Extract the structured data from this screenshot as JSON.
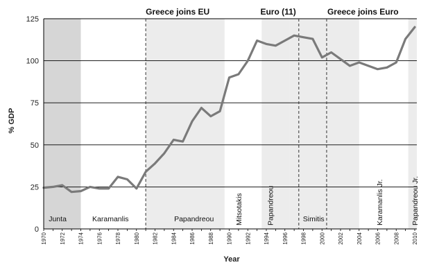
{
  "chart_data": {
    "type": "line",
    "title": "",
    "xlabel": "Year",
    "ylabel": "% GDP",
    "xlim": [
      1970,
      2010
    ],
    "ylim": [
      0,
      125
    ],
    "y_ticks": [
      0,
      25,
      50,
      75,
      100,
      125
    ],
    "x_ticks": [
      "1970",
      "1972",
      "1974",
      "1976",
      "1978",
      "1980",
      "1982",
      "1984",
      "1986",
      "1988",
      "1990",
      "1992",
      "1994",
      "1996",
      "1998",
      "2000",
      "2002",
      "2004",
      "2006",
      "2008",
      "2010"
    ],
    "grid": "horizontal",
    "colors": {
      "line": "#7a7a7a",
      "shade_dark": "#d6d6d6",
      "shade_light": "#ececec",
      "gridline": "#000000"
    },
    "series": [
      {
        "x": [
          1970,
          1971,
          1972,
          1973,
          1974,
          1975,
          1976,
          1977,
          1978,
          1979,
          1980,
          1981,
          1982,
          1983,
          1984,
          1985,
          1986,
          1987,
          1988,
          1989,
          1990,
          1991,
          1992,
          1993,
          1994,
          1995,
          1996,
          1997,
          1998,
          1999,
          2000,
          2001,
          2002,
          2003,
          2004,
          2005,
          2006,
          2007,
          2008,
          2009,
          2010
        ],
        "values": [
          24.5,
          25,
          26,
          22,
          22.5,
          25,
          24,
          24,
          31,
          29.5,
          24,
          34,
          39,
          45,
          53,
          52,
          64,
          72,
          67,
          70,
          90,
          92,
          100,
          112,
          110,
          109,
          112,
          115,
          114,
          113,
          102,
          105,
          101,
          97,
          99,
          97,
          95,
          96,
          99,
          113,
          120
        ]
      }
    ],
    "shaded_periods": [
      {
        "from": 1970,
        "to": 1974,
        "shade": "dark"
      },
      {
        "from": 1974,
        "to": 1981,
        "shade": "none"
      },
      {
        "from": 1981,
        "to": 1989.5,
        "shade": "light"
      },
      {
        "from": 1989.5,
        "to": 1993.5,
        "shade": "none"
      },
      {
        "from": 1993.5,
        "to": 1996.5,
        "shade": "light"
      },
      {
        "from": 1996.5,
        "to": 2004,
        "shade": "light"
      },
      {
        "from": 2004,
        "to": 2009.3,
        "shade": "none"
      },
      {
        "from": 2009.3,
        "to": 2010.5,
        "shade": "light"
      }
    ],
    "event_lines": [
      {
        "year": 1981,
        "label": "Greece joins EU"
      },
      {
        "year": 1997.5,
        "label": "Euro (11)"
      },
      {
        "year": 2000.5,
        "label": "Greece joins Euro"
      }
    ],
    "period_labels": [
      {
        "text": "Junta",
        "year": 1971.5,
        "rotated": false
      },
      {
        "text": "Karamanlis",
        "year": 1977.2,
        "rotated": false
      },
      {
        "text": "Papandreou",
        "year": 1986.2,
        "rotated": false
      },
      {
        "text": "Mitsotakis",
        "year": 1991,
        "rotated": true
      },
      {
        "text": "Papandreou",
        "year": 1994.4,
        "rotated": true
      },
      {
        "text": "Simitis",
        "year": 1999.1,
        "rotated": false
      },
      {
        "text": "Karamanlis Jr.",
        "year": 2006.2,
        "rotated": true
      },
      {
        "text": "Papandreou Jr.",
        "year": 2010,
        "rotated": true
      }
    ]
  }
}
